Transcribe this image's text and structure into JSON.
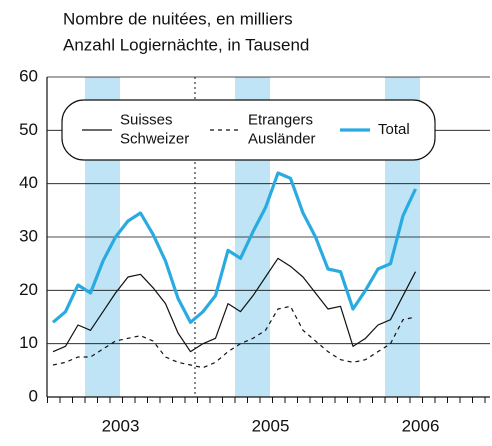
{
  "chart_data": {
    "type": "line",
    "title": "Nombre de nuitées, en milliers",
    "subtitle": "Anzahl Logiernächte, in Tausend",
    "categories": [
      null,
      null,
      null,
      null,
      null,
      "2003",
      null,
      null,
      null,
      null,
      null,
      null,
      null,
      null,
      null,
      null,
      null,
      "2005",
      null,
      null,
      null,
      null,
      null,
      null,
      null,
      null,
      null,
      null,
      null,
      "2006"
    ],
    "series": [
      {
        "name": "Suisses Schweizer",
        "color": "#111111",
        "dash": false,
        "values": [
          8.5,
          9.5,
          13.5,
          12.5,
          16,
          19.5,
          22.5,
          23,
          20.5,
          17.5,
          12,
          8.5,
          10,
          11,
          17.5,
          16,
          19,
          22.5,
          26,
          24.5,
          22.5,
          19.5,
          16.5,
          17,
          9.5,
          11,
          13.5,
          14.5,
          19,
          23.5
        ]
      },
      {
        "name": "Etrangers Ausländer",
        "color": "#111111",
        "dash": true,
        "values": [
          6,
          6.5,
          7.5,
          7.5,
          9,
          10.5,
          11,
          11.5,
          10.5,
          7.5,
          6.5,
          6,
          5.5,
          6.5,
          8.5,
          10,
          11,
          12.5,
          16.5,
          17,
          12.5,
          10.5,
          8.5,
          7,
          6.5,
          7,
          8.5,
          10,
          14.5,
          15
        ]
      },
      {
        "name": "Total",
        "color": "#29abe2",
        "dash": false,
        "values": [
          14,
          16,
          21,
          19.5,
          25.5,
          30,
          33,
          34.5,
          30.5,
          25.5,
          18.5,
          14,
          16,
          19,
          27.5,
          26,
          31,
          35.5,
          42,
          41,
          34.5,
          30,
          24,
          23.5,
          16.5,
          20,
          24,
          25,
          34,
          39
        ]
      }
    ],
    "ylim": [
      0,
      60
    ],
    "yticks": [
      0,
      10,
      20,
      30,
      40,
      50,
      60
    ],
    "grid": true
  }
}
